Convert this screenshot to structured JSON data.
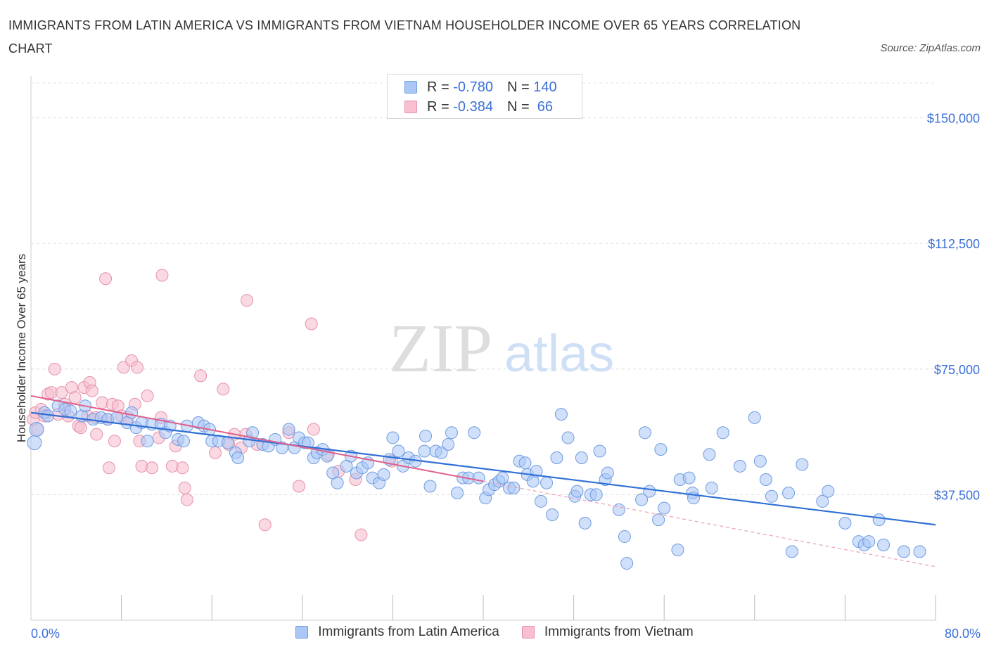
{
  "header": {
    "title": "IMMIGRANTS FROM LATIN AMERICA VS IMMIGRANTS FROM VIETNAM HOUSEHOLDER INCOME OVER 65 YEARS CORRELATION CHART",
    "source": "Source: ZipAtlas.com"
  },
  "watermark": {
    "zip": "ZIP",
    "atlas": "atlas"
  },
  "legend": {
    "rows": [
      {
        "r_label": "R = ",
        "r_value": "-0.780",
        "n_label": "N = ",
        "n_value": "140",
        "color": "#aac7f5",
        "border": "#6f9be0"
      },
      {
        "r_label": "R = ",
        "r_value": "-0.384",
        "n_label": "N = ",
        "n_value": " 66",
        "color": "#f7bfd0",
        "border": "#e691ab"
      }
    ]
  },
  "colors": {
    "blue_fill": "#aac7f5",
    "blue_stroke": "#6f9be0",
    "blue_line": "#2f6fd6",
    "pink_fill": "#f7bfd0",
    "pink_stroke": "#e691ab",
    "pink_line": "#e0608a",
    "axis_text": "#3a6fd8"
  },
  "chart_data": {
    "type": "scatter",
    "title": "IMMIGRANTS FROM LATIN AMERICA VS IMMIGRANTS FROM VIETNAM HOUSEHOLDER INCOME OVER 65 YEARS CORRELATION CHART",
    "xlabel": "",
    "ylabel": "Householder Income Over 65 years",
    "xlim": [
      0,
      80
    ],
    "ylim": [
      0,
      160000
    ],
    "x_tick_labels": [
      "0.0%",
      "80.0%"
    ],
    "y_ticks": [
      37500,
      75000,
      112500,
      150000
    ],
    "y_tick_labels": [
      "$37,500",
      "$75,000",
      "$112,500",
      "$150,000"
    ],
    "grid": true,
    "legend_position": "top-center",
    "series": [
      {
        "name": "Immigrants from Latin America",
        "r": -0.78,
        "n": 140,
        "trend": {
          "x": [
            0,
            80
          ],
          "y": [
            62000,
            28500
          ]
        },
        "points": [
          [
            0.3,
            53000
          ],
          [
            0.5,
            57000
          ],
          [
            1.2,
            62000
          ],
          [
            1.5,
            61000
          ],
          [
            2.4,
            64000
          ],
          [
            3.0,
            63000
          ],
          [
            3.5,
            62500
          ],
          [
            4.5,
            61000
          ],
          [
            4.8,
            64000
          ],
          [
            5.5,
            60000
          ],
          [
            6.2,
            60500
          ],
          [
            6.8,
            60000
          ],
          [
            7.6,
            60500
          ],
          [
            8.5,
            59000
          ],
          [
            8.9,
            62000
          ],
          [
            9.3,
            57500
          ],
          [
            9.8,
            59000
          ],
          [
            10.3,
            53500
          ],
          [
            10.7,
            58500
          ],
          [
            11.5,
            58500
          ],
          [
            11.9,
            56000
          ],
          [
            12.3,
            58000
          ],
          [
            13.0,
            54000
          ],
          [
            13.5,
            53500
          ],
          [
            13.8,
            58000
          ],
          [
            14.8,
            59000
          ],
          [
            15.3,
            58000
          ],
          [
            15.8,
            57000
          ],
          [
            16.0,
            53500
          ],
          [
            16.6,
            53500
          ],
          [
            17.4,
            53000
          ],
          [
            18.1,
            50000
          ],
          [
            18.3,
            48500
          ],
          [
            19.3,
            53500
          ],
          [
            19.6,
            56000
          ],
          [
            20.5,
            52500
          ],
          [
            21.0,
            52000
          ],
          [
            21.6,
            54000
          ],
          [
            22.2,
            51500
          ],
          [
            22.8,
            57000
          ],
          [
            23.3,
            51500
          ],
          [
            23.7,
            54500
          ],
          [
            24.2,
            53000
          ],
          [
            24.5,
            53000
          ],
          [
            25.0,
            48500
          ],
          [
            25.3,
            50000
          ],
          [
            25.8,
            51000
          ],
          [
            26.2,
            49000
          ],
          [
            26.7,
            44000
          ],
          [
            27.1,
            41000
          ],
          [
            27.9,
            46000
          ],
          [
            28.3,
            49000
          ],
          [
            28.8,
            44000
          ],
          [
            29.3,
            45500
          ],
          [
            29.8,
            47000
          ],
          [
            30.2,
            42500
          ],
          [
            30.8,
            41000
          ],
          [
            31.2,
            43500
          ],
          [
            31.7,
            48000
          ],
          [
            32.0,
            54500
          ],
          [
            32.5,
            50500
          ],
          [
            32.9,
            46000
          ],
          [
            33.4,
            48500
          ],
          [
            34.0,
            47500
          ],
          [
            34.8,
            50500
          ],
          [
            34.9,
            55000
          ],
          [
            35.3,
            40000
          ],
          [
            35.8,
            50500
          ],
          [
            36.3,
            50000
          ],
          [
            36.9,
            52500
          ],
          [
            37.2,
            56000
          ],
          [
            37.7,
            38000
          ],
          [
            38.2,
            42500
          ],
          [
            38.7,
            42500
          ],
          [
            39.2,
            56000
          ],
          [
            39.6,
            42500
          ],
          [
            40.2,
            36500
          ],
          [
            40.5,
            39000
          ],
          [
            41.0,
            40500
          ],
          [
            41.4,
            41500
          ],
          [
            41.7,
            42500
          ],
          [
            42.3,
            39500
          ],
          [
            42.7,
            39500
          ],
          [
            43.2,
            47500
          ],
          [
            43.7,
            47000
          ],
          [
            43.9,
            43500
          ],
          [
            44.4,
            41500
          ],
          [
            44.7,
            44500
          ],
          [
            45.1,
            35500
          ],
          [
            45.6,
            41000
          ],
          [
            46.1,
            31500
          ],
          [
            46.5,
            48500
          ],
          [
            46.9,
            61500
          ],
          [
            47.5,
            54500
          ],
          [
            48.1,
            37000
          ],
          [
            48.3,
            38500
          ],
          [
            48.7,
            48500
          ],
          [
            49.0,
            29000
          ],
          [
            49.5,
            37500
          ],
          [
            50.0,
            37500
          ],
          [
            50.3,
            50500
          ],
          [
            50.8,
            42000
          ],
          [
            51.0,
            44000
          ],
          [
            52.0,
            33000
          ],
          [
            52.5,
            25000
          ],
          [
            52.7,
            17000
          ],
          [
            54.0,
            36000
          ],
          [
            54.3,
            56000
          ],
          [
            54.7,
            38500
          ],
          [
            55.5,
            30000
          ],
          [
            55.7,
            51000
          ],
          [
            56.0,
            33500
          ],
          [
            57.2,
            21000
          ],
          [
            57.4,
            42000
          ],
          [
            58.2,
            42500
          ],
          [
            58.5,
            38000
          ],
          [
            58.6,
            36500
          ],
          [
            60.0,
            49500
          ],
          [
            60.2,
            39500
          ],
          [
            61.2,
            56000
          ],
          [
            62.7,
            46000
          ],
          [
            64.0,
            60500
          ],
          [
            64.5,
            47500
          ],
          [
            65.0,
            42000
          ],
          [
            65.5,
            37000
          ],
          [
            67.0,
            38000
          ],
          [
            67.3,
            20500
          ],
          [
            68.2,
            46500
          ],
          [
            70.0,
            35500
          ],
          [
            70.5,
            38500
          ],
          [
            72.0,
            29000
          ],
          [
            73.2,
            23500
          ],
          [
            73.7,
            22500
          ],
          [
            74.1,
            23500
          ],
          [
            75.0,
            30000
          ],
          [
            75.4,
            22500
          ],
          [
            77.2,
            20500
          ],
          [
            78.6,
            20500
          ]
        ]
      },
      {
        "name": "Immigrants from Vietnam",
        "r": -0.384,
        "n": 66,
        "trend": {
          "x": [
            0,
            40
          ],
          "y": [
            67000,
            41500
          ]
        },
        "trend_extension": {
          "x": [
            40,
            80
          ],
          "y": [
            41500,
            16000
          ]
        },
        "points": [
          [
            0.2,
            60000
          ],
          [
            0.4,
            62000
          ],
          [
            0.6,
            57000
          ],
          [
            0.9,
            63000
          ],
          [
            1.2,
            61000
          ],
          [
            1.5,
            67500
          ],
          [
            1.8,
            68000
          ],
          [
            2.1,
            75000
          ],
          [
            2.4,
            61500
          ],
          [
            2.7,
            68000
          ],
          [
            3.0,
            64500
          ],
          [
            3.3,
            61000
          ],
          [
            3.6,
            69500
          ],
          [
            3.9,
            66500
          ],
          [
            4.2,
            58000
          ],
          [
            4.4,
            57500
          ],
          [
            4.7,
            69500
          ],
          [
            5.0,
            61000
          ],
          [
            5.2,
            71000
          ],
          [
            5.4,
            68500
          ],
          [
            5.7,
            60500
          ],
          [
            5.8,
            55500
          ],
          [
            6.3,
            65000
          ],
          [
            6.6,
            102000
          ],
          [
            6.8,
            60000
          ],
          [
            6.9,
            45500
          ],
          [
            7.2,
            64500
          ],
          [
            7.4,
            53500
          ],
          [
            7.7,
            64000
          ],
          [
            8.0,
            61000
          ],
          [
            8.2,
            75500
          ],
          [
            8.6,
            60500
          ],
          [
            8.9,
            77500
          ],
          [
            9.2,
            64500
          ],
          [
            9.4,
            75500
          ],
          [
            9.6,
            53500
          ],
          [
            9.8,
            46000
          ],
          [
            10.3,
            67000
          ],
          [
            10.7,
            45500
          ],
          [
            11.3,
            54500
          ],
          [
            11.5,
            60500
          ],
          [
            11.6,
            103000
          ],
          [
            12.5,
            46000
          ],
          [
            12.8,
            52000
          ],
          [
            13.4,
            45500
          ],
          [
            13.6,
            39500
          ],
          [
            13.8,
            36000
          ],
          [
            15.0,
            73000
          ],
          [
            16.3,
            50000
          ],
          [
            17.0,
            69000
          ],
          [
            17.5,
            52500
          ],
          [
            18.0,
            55500
          ],
          [
            18.6,
            51500
          ],
          [
            19.0,
            55500
          ],
          [
            19.1,
            95500
          ],
          [
            20.0,
            52500
          ],
          [
            20.7,
            28500
          ],
          [
            22.8,
            56000
          ],
          [
            23.7,
            40000
          ],
          [
            24.8,
            88500
          ],
          [
            25.0,
            57000
          ],
          [
            26.3,
            49500
          ],
          [
            27.2,
            44500
          ],
          [
            28.7,
            42000
          ],
          [
            29.2,
            25500
          ],
          [
            31.9,
            47500
          ]
        ]
      }
    ]
  }
}
